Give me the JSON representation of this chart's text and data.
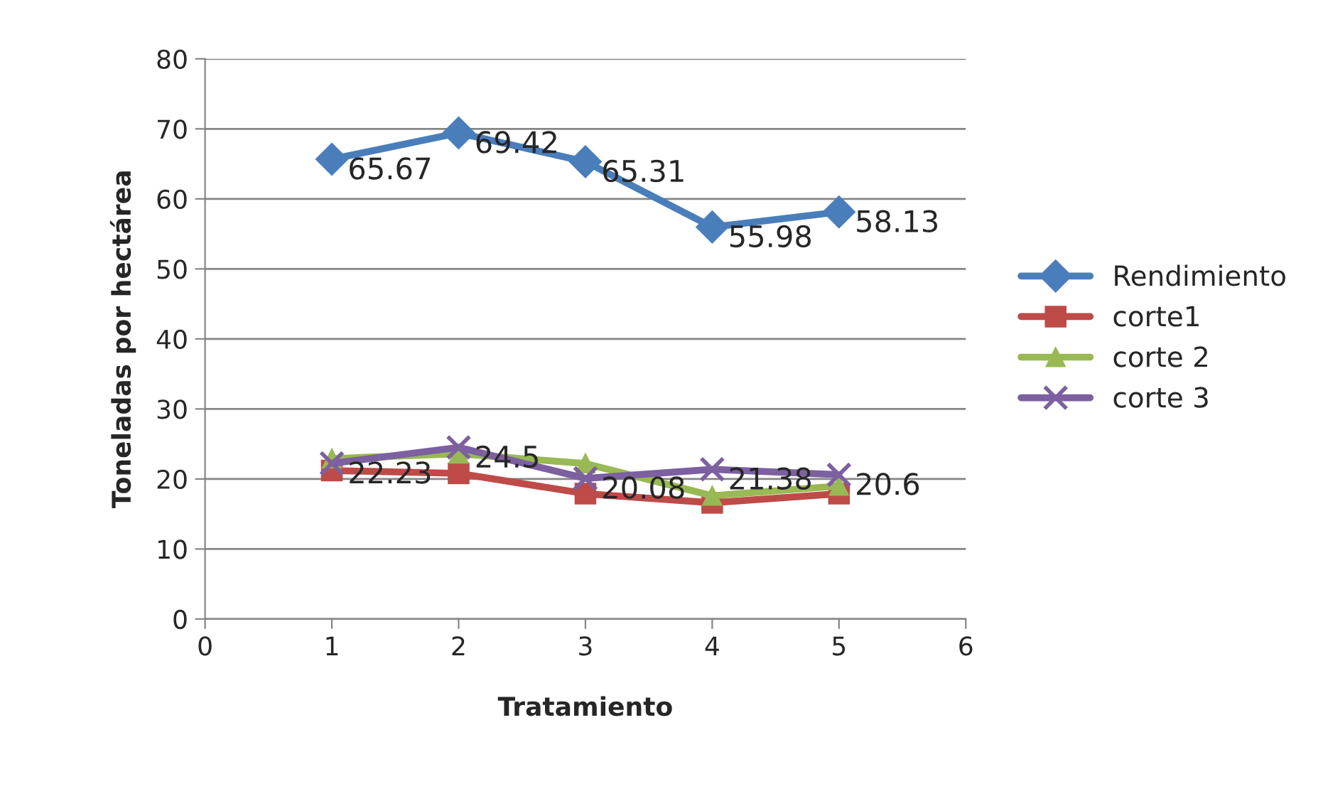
{
  "chart_data": {
    "type": "line",
    "xlabel": "Tratamiento",
    "ylabel": "Toneladas por hectárea",
    "x": [
      1,
      2,
      3,
      4,
      5
    ],
    "xlim": [
      0,
      6
    ],
    "xticks": [
      0,
      1,
      2,
      3,
      4,
      5,
      6
    ],
    "ylim": [
      0,
      80
    ],
    "yticks": [
      0,
      10,
      20,
      30,
      40,
      50,
      60,
      70,
      80
    ],
    "grid": "y",
    "legend": "right",
    "line_style": "solid",
    "series": [
      {
        "name": "Rendimiento",
        "color": "#4a7ebb",
        "marker": "diamond",
        "values": [
          65.67,
          69.42,
          65.31,
          55.98,
          58.13
        ],
        "value_labels": [
          "65.67",
          "69.42",
          "65.31",
          "55.98",
          "58.13"
        ]
      },
      {
        "name": "corte1",
        "color": "#be4b48",
        "marker": "square",
        "values": [
          21.2,
          20.8,
          17.9,
          16.6,
          17.9
        ]
      },
      {
        "name": "corte 2",
        "color": "#98b954",
        "marker": "triangle",
        "values": [
          22.9,
          23.6,
          22.2,
          17.6,
          19.0
        ]
      },
      {
        "name": "corte 3",
        "color": "#7d60a0",
        "marker": "cross",
        "values": [
          22.23,
          24.5,
          20.08,
          21.38,
          20.6
        ],
        "value_labels": [
          "22.23",
          "24.5",
          "20.08",
          "21.38",
          "20.6"
        ]
      }
    ]
  }
}
